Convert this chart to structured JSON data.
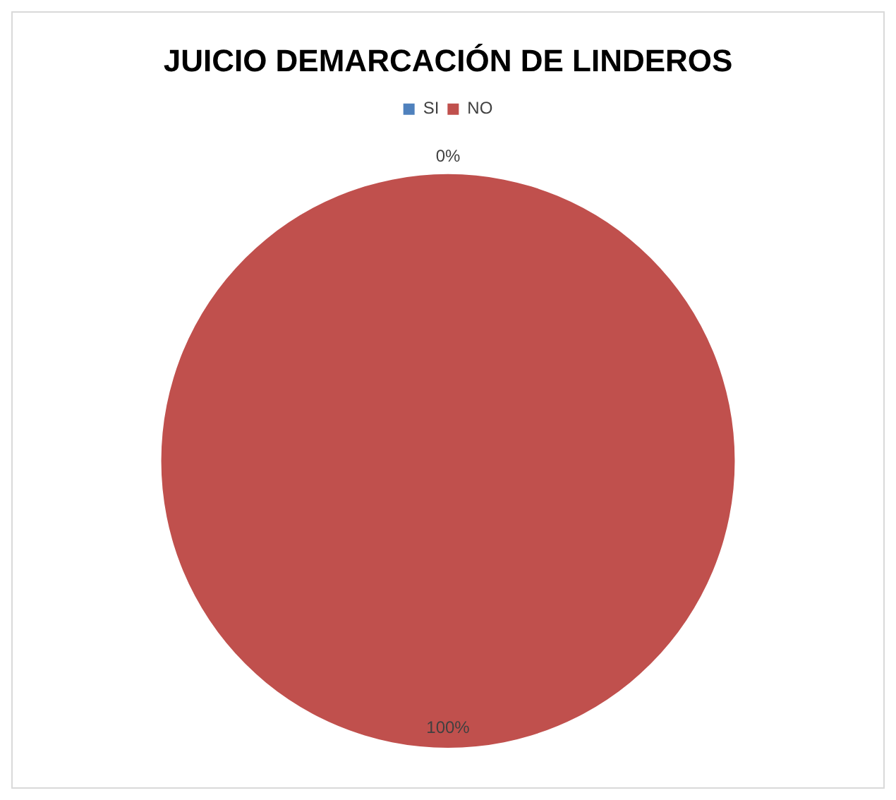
{
  "chart_data": {
    "type": "pie",
    "title": "JUICIO DEMARCACIÓN DE LINDEROS",
    "categories": [
      "SI",
      "NO"
    ],
    "values": [
      0,
      100
    ],
    "colors": [
      "#4f81bd",
      "#c0504d"
    ],
    "value_labels": [
      "0%",
      "100%"
    ],
    "legend": "top"
  }
}
